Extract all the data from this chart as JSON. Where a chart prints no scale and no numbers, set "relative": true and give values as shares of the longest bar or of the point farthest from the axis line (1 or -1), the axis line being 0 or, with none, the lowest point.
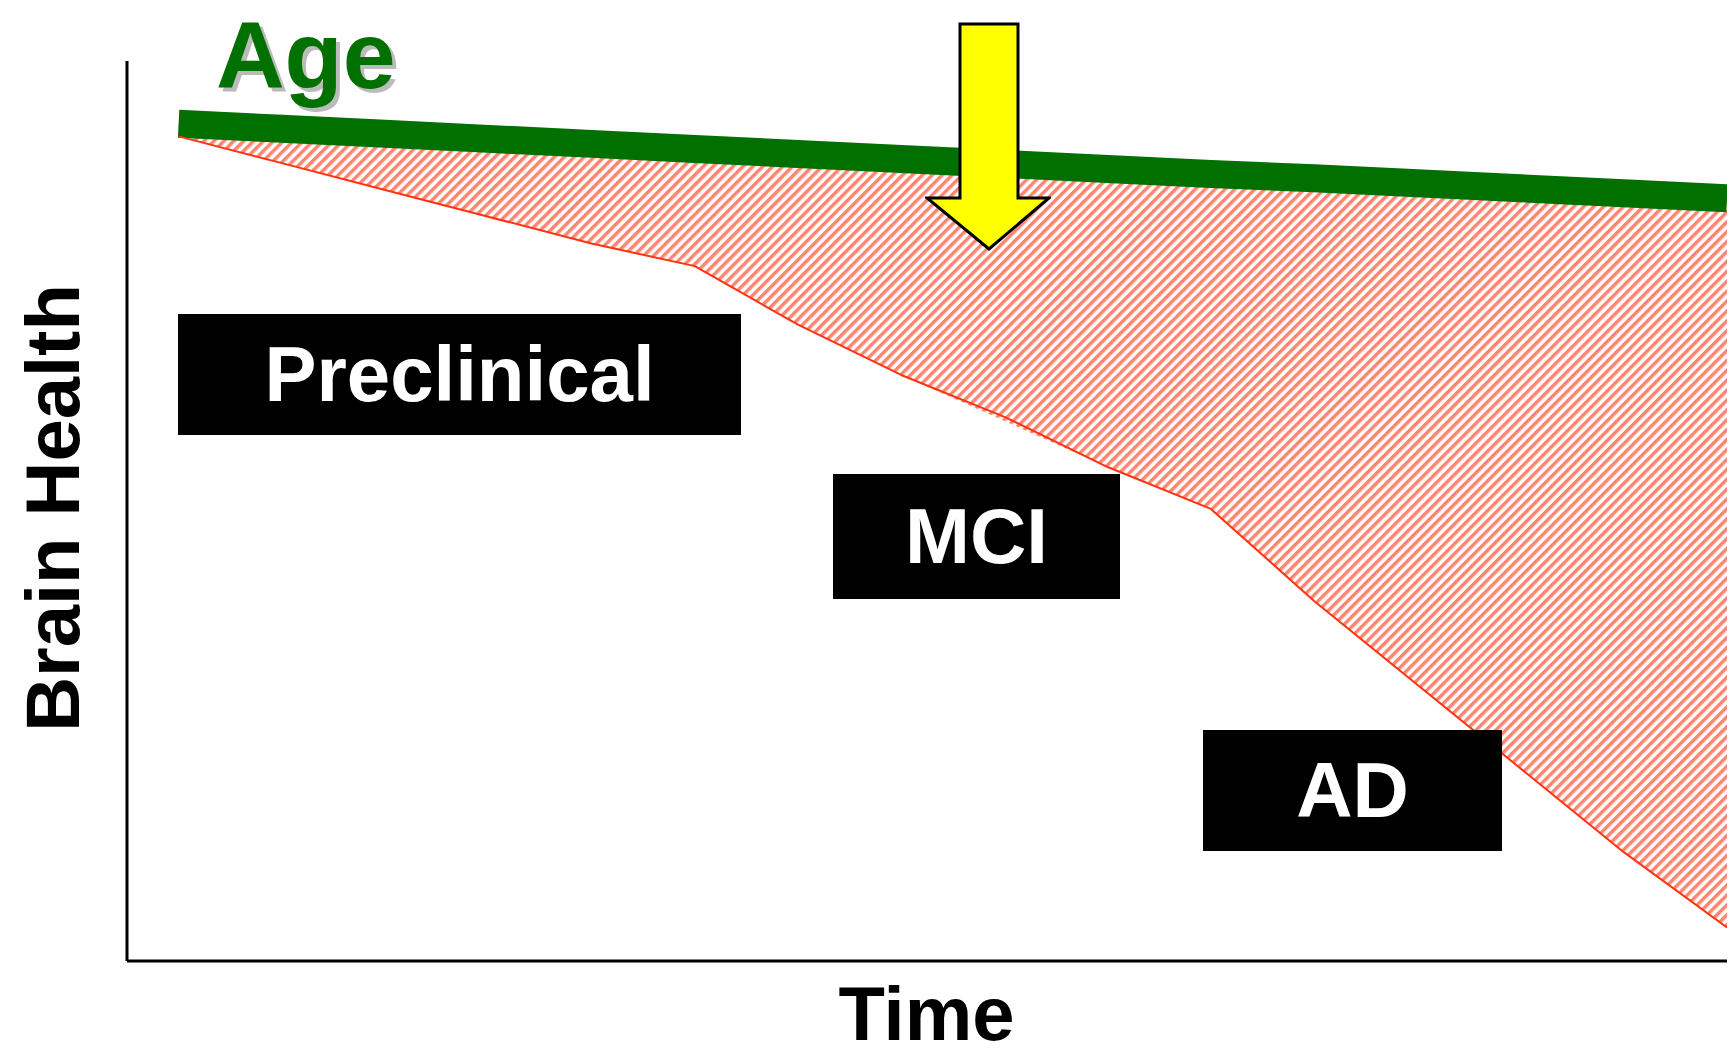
{
  "chart_data": {
    "type": "line",
    "relative": true,
    "xlabel": "Time",
    "ylabel": "Brain Health",
    "grid": false,
    "legend": false,
    "marker": "none",
    "line_style": "solid",
    "categories": [
      null,
      null,
      null,
      null,
      null,
      null,
      null,
      null,
      null,
      null,
      null,
      null,
      null,
      null,
      null,
      null
    ],
    "series": [
      {
        "name": "Age",
        "color": "#007000",
        "values": [
          1,
          0.994,
          0.988,
          0.982,
          0.976,
          0.97,
          0.964,
          0.958,
          null,
          0.946,
          0.94,
          0.935,
          0.929,
          0.923,
          0.917,
          0.911
        ]
      },
      {
        "color": "#ff3311",
        "values": [
          0.985,
          0.953,
          0.921,
          0.889,
          0.857,
          0.83,
          0.76,
          0.7,
          0.65,
          0.59,
          0.54,
          0.43,
          0.33,
          0.23,
          0.13,
          0.04
        ],
        "lower": [
          0.985,
          0.953,
          0.921,
          0.889,
          0.857,
          0.83,
          0.76,
          0.7,
          null,
          0.59,
          0.54,
          0.43,
          0.33,
          0.23,
          0.13,
          0.04
        ],
        "upper": [
          1,
          0.994,
          0.988,
          0.982,
          0.976,
          0.97,
          0.964,
          0.958,
          null,
          0.946,
          0.94,
          0.935,
          0.929,
          0.923,
          0.917,
          0.911
        ]
      }
    ],
    "annotations": [
      "Preclinical",
      "MCI",
      "AD"
    ]
  }
}
